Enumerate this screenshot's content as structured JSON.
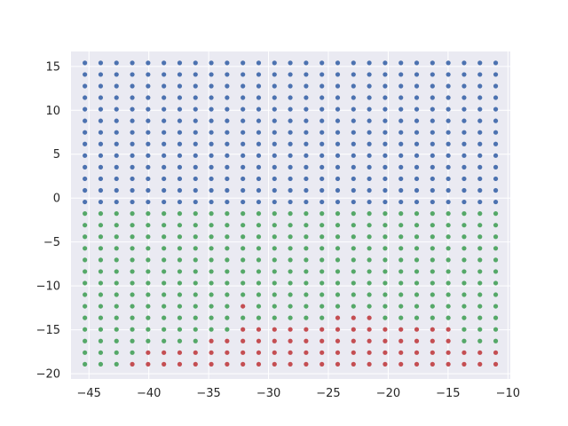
{
  "chart_data": {
    "type": "scatter",
    "title": "",
    "xlabel": "",
    "ylabel": "",
    "xlim": [
      -46.5,
      -9.8
    ],
    "ylim": [
      -20.6,
      16.7
    ],
    "grid": true,
    "legend": "none",
    "x_ticks": [
      -45,
      -40,
      -35,
      -30,
      -25,
      -20,
      -15,
      -10
    ],
    "y_ticks": [
      -20,
      -15,
      -10,
      -5,
      0,
      5,
      10,
      15
    ],
    "x_tick_labels": [
      "−45",
      "−40",
      "−35",
      "−30",
      "−25",
      "−20",
      "−15",
      "−10"
    ],
    "y_tick_labels": [
      "−20",
      "−15",
      "−10",
      "−5",
      "0",
      "5",
      "10",
      "15"
    ],
    "grid_points": {
      "x": [
        -45.34,
        -44.02,
        -42.7,
        -41.38,
        -40.06,
        -38.74,
        -37.42,
        -36.1,
        -34.78,
        -33.46,
        -32.14,
        -30.82,
        -29.5,
        -28.18,
        -26.86,
        -25.54,
        -24.22,
        -22.9,
        -21.58,
        -20.26,
        -18.94,
        -17.62,
        -16.3,
        -14.98,
        -13.66,
        -12.34,
        -11.02
      ],
      "y": [
        15.4,
        14.08,
        12.76,
        11.44,
        10.12,
        8.8,
        7.48,
        6.16,
        4.84,
        3.52,
        2.2,
        0.88,
        -0.44,
        -1.76,
        -3.08,
        -4.4,
        -5.72,
        -7.04,
        -8.36,
        -9.68,
        -11.0,
        -12.32,
        -13.64,
        -14.96,
        -16.28,
        -17.6,
        -18.92
      ]
    },
    "series": [
      {
        "color": "#4c72b0",
        "region": "y >= -0.44 (rows 0-12, all columns)",
        "rows": [
          0,
          12
        ],
        "cols": [
          0,
          26
        ]
      },
      {
        "color": "#55a868",
        "region": "y <= -1.76 except red cells",
        "rows": [
          13,
          26
        ],
        "cols": [
          0,
          26
        ]
      },
      {
        "color": "#c44e52",
        "cells_by_row": {
          "21": [
            10
          ],
          "22": [
            16,
            17,
            18
          ],
          "23": [
            10,
            11,
            12,
            13,
            14,
            15,
            16,
            17,
            18,
            19,
            20,
            21,
            22,
            23
          ],
          "24": [
            8,
            9,
            10,
            11,
            12,
            13,
            14,
            15,
            16,
            17,
            18,
            19,
            20,
            21,
            22,
            23
          ],
          "25": [
            4,
            5,
            6,
            7,
            8,
            9,
            10,
            11,
            12,
            13,
            14,
            15,
            16,
            17,
            18,
            19,
            20,
            21,
            22,
            23,
            24,
            25,
            26
          ],
          "26": [
            3,
            4,
            5,
            6,
            7,
            8,
            9,
            10,
            11,
            12,
            13,
            14,
            15,
            16,
            17,
            18,
            19,
            20,
            21,
            22,
            23,
            24,
            25,
            26
          ]
        }
      }
    ],
    "colors": {
      "plot_background": "#eaeaf2",
      "grid": "#ffffff",
      "text": "#262626"
    }
  }
}
